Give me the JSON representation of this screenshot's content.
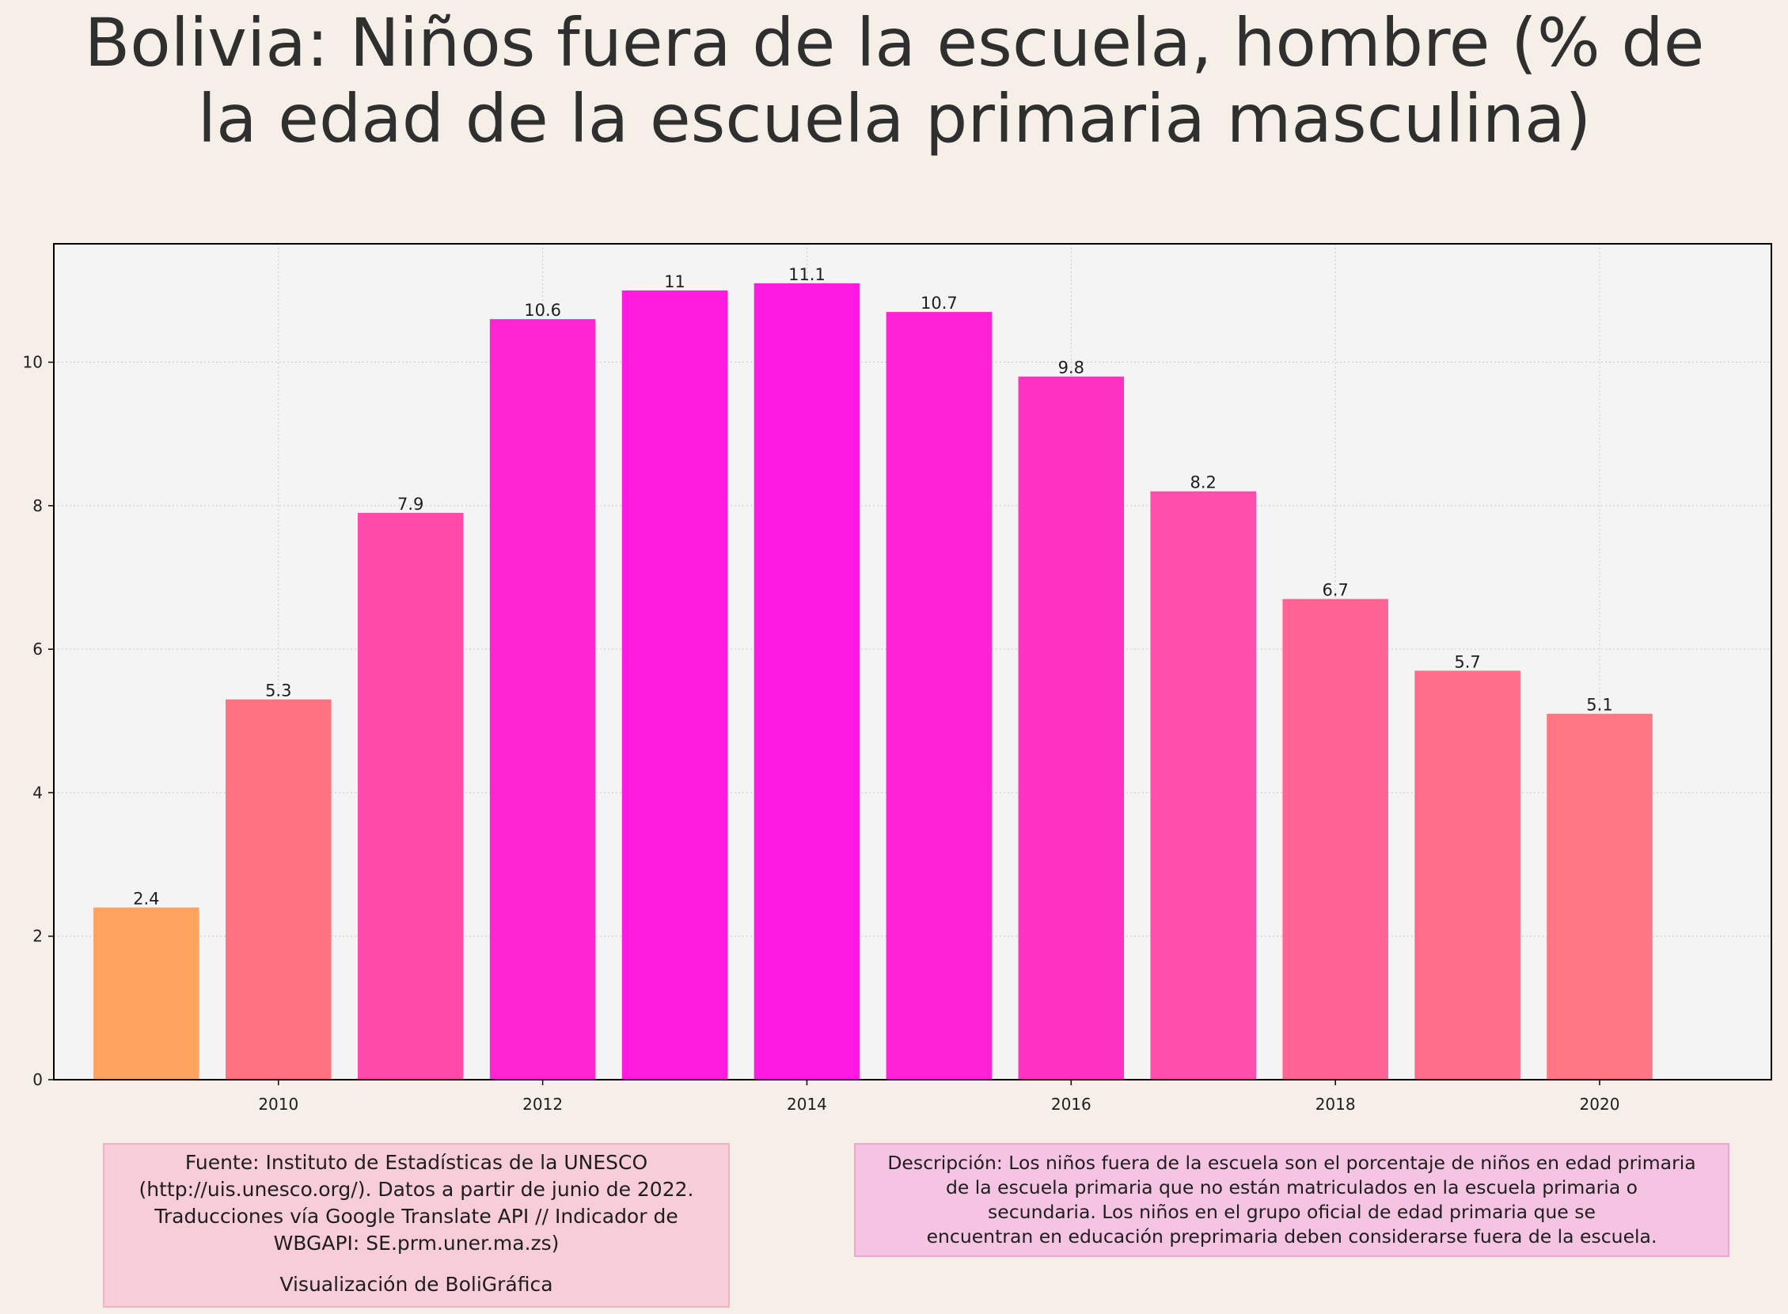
{
  "title": "Bolivia:  Niños fuera de la escuela, hombre (% de la edad de la escuela primaria masculina)",
  "chart_data": {
    "type": "bar",
    "title": "Bolivia:  Niños fuera de la escuela, hombre (% de la edad de la escuela primaria masculina)",
    "xlabel": "",
    "ylabel": "",
    "x": [
      2009,
      2010,
      2011,
      2012,
      2013,
      2014,
      2015,
      2016,
      2017,
      2018,
      2019,
      2020
    ],
    "values": [
      2.4,
      5.3,
      7.9,
      10.6,
      11,
      11.1,
      10.7,
      9.8,
      8.2,
      6.7,
      5.7,
      5.1
    ],
    "value_labels": [
      "2.4",
      "5.3",
      "7.9",
      "10.6",
      "11",
      "11.1",
      "10.7",
      "9.8",
      "8.2",
      "6.7",
      "5.7",
      "5.1"
    ],
    "bar_colors": [
      "#ffa35e",
      "#ff7282",
      "#ff4aaa",
      "#ff26d1",
      "#ff1bde",
      "#ff19e1",
      "#ff22d6",
      "#ff32c3",
      "#ff4eab",
      "#ff6494",
      "#ff6d8b",
      "#ff7684"
    ],
    "x_ticks": [
      2010,
      2012,
      2014,
      2016,
      2018,
      2020
    ],
    "y_ticks": [
      0,
      2,
      4,
      6,
      8,
      10
    ],
    "xlim": [
      2008.3,
      2021.3
    ],
    "ylim": [
      0,
      11.65
    ],
    "grid": true,
    "legend": "none"
  },
  "source_box": {
    "lines": [
      "Fuente: Instituto de Estadísticas de la UNESCO",
      "(http://uis.unesco.org/). Datos a partir de junio de 2022.",
      "Traducciones vía Google Translate API // Indicador de",
      "WBGAPI: SE.prm.uner.ma.zs)"
    ],
    "credit": "Visualización de BoliGráfica"
  },
  "description_box": {
    "lines": [
      "Descripción: Los niños fuera de la escuela son el porcentaje de niños en edad primaria",
      "de la escuela primaria que no están matriculados en la escuela primaria o",
      "secundaria. Los niños en el grupo oficial de edad primaria que se",
      "encuentran en educación preprimaria deben considerarse fuera de la escuela."
    ]
  },
  "colors": {
    "background": "#f5efe8",
    "plot_background": "#f4f4f4",
    "grid": "#c8c8c8",
    "axis": "#000000"
  }
}
